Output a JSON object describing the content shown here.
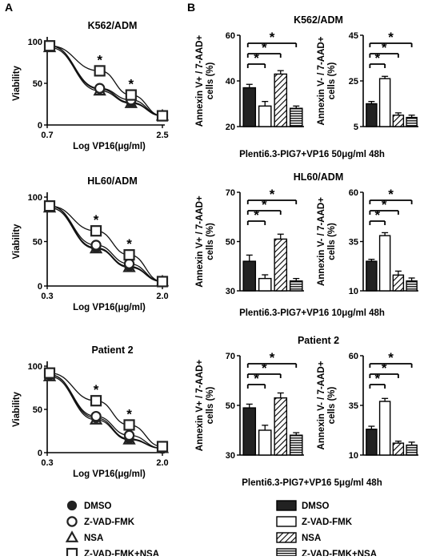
{
  "panel_labels": {
    "a": "A",
    "b": "B"
  },
  "ylabel_viability": "Viability",
  "xlabel_log": "Log VP16(μg/ml)",
  "ylabel_pos": "Annexin V+ / 7-AAD+ cells (%)",
  "ylabel_neg": "Annexin V- / 7-AAD+ cells (%)",
  "star": "*",
  "legend_a": [
    {
      "label": "DMSO",
      "marker": "filled-circle"
    },
    {
      "label": "Z-VAD-FMK",
      "marker": "open-circle"
    },
    {
      "label": "NSA",
      "marker": "open-triangle"
    },
    {
      "label": "Z-VAD-FMK+NSA",
      "marker": "open-square"
    }
  ],
  "legend_b": [
    {
      "label": "DMSO",
      "fill": "solid"
    },
    {
      "label": "Z-VAD-FMK",
      "fill": "white"
    },
    {
      "label": "NSA",
      "fill": "diagonal-hatch"
    },
    {
      "label": "Z-VAD-FMK+NSA",
      "fill": "horizontal-lines"
    }
  ],
  "chart_data": [
    {
      "type": "line",
      "panel": "A",
      "title": "K562/ADM",
      "xlabel": "Log VP16(μg/ml)",
      "ylabel": "Viability",
      "xlim": [
        0.7,
        2.5
      ],
      "ylim": [
        0,
        100
      ],
      "xticks": [
        "0.7",
        "2.5"
      ],
      "yticks": [
        0,
        50,
        100
      ],
      "x": [
        0.7,
        1.5,
        2.0,
        2.5
      ],
      "series": [
        {
          "name": "DMSO",
          "values": [
            95,
            43,
            27,
            11
          ]
        },
        {
          "name": "Z-VAD-FMK",
          "values": [
            95,
            44,
            30,
            11
          ]
        },
        {
          "name": "NSA",
          "values": [
            93,
            41,
            26,
            11
          ]
        },
        {
          "name": "Z-VAD-FMK+NSA",
          "values": [
            95,
            65,
            36,
            11
          ]
        }
      ],
      "significance": [
        1.5,
        2.0
      ]
    },
    {
      "type": "line",
      "panel": "A",
      "title": "HL60/ADM",
      "xlabel": "Log VP16(μg/ml)",
      "ylabel": "Viability",
      "xlim": [
        0.3,
        2.0
      ],
      "ylim": [
        0,
        100
      ],
      "xticks": [
        "0.3",
        "2.0"
      ],
      "yticks": [
        0,
        50,
        100
      ],
      "x": [
        0.3,
        1.0,
        1.5,
        2.0
      ],
      "series": [
        {
          "name": "DMSO",
          "values": [
            90,
            43,
            22,
            5
          ]
        },
        {
          "name": "Z-VAD-FMK",
          "values": [
            90,
            46,
            25,
            5
          ]
        },
        {
          "name": "NSA",
          "values": [
            88,
            42,
            21,
            5
          ]
        },
        {
          "name": "Z-VAD-FMK+NSA",
          "values": [
            90,
            62,
            35,
            5
          ]
        }
      ],
      "significance": [
        1.0,
        1.5
      ]
    },
    {
      "type": "line",
      "panel": "A",
      "title": "Patient 2",
      "xlabel": "Log VP16(μg/ml)",
      "ylabel": "Viability",
      "xlim": [
        0.3,
        2.0
      ],
      "ylim": [
        0,
        100
      ],
      "xticks": [
        "0.3",
        "2.0"
      ],
      "yticks": [
        0,
        50,
        100
      ],
      "x": [
        0.3,
        1.0,
        1.5,
        2.0
      ],
      "series": [
        {
          "name": "DMSO",
          "values": [
            90,
            40,
            16,
            5
          ]
        },
        {
          "name": "Z-VAD-FMK",
          "values": [
            90,
            42,
            20,
            5
          ]
        },
        {
          "name": "NSA",
          "values": [
            88,
            38,
            15,
            5
          ]
        },
        {
          "name": "Z-VAD-FMK+NSA",
          "values": [
            92,
            60,
            32,
            7
          ]
        }
      ],
      "significance": [
        1.0,
        1.5
      ]
    },
    {
      "type": "bar",
      "panel": "B",
      "title": "K562/ADM",
      "ylabel": "Annexin V+ / 7-AAD+ cells (%)",
      "ylim": [
        20,
        60
      ],
      "yticks": [
        20,
        40,
        60
      ],
      "categories": [
        "DMSO",
        "Z-VAD-FMK",
        "NSA",
        "Z-VAD-FMK+NSA"
      ],
      "values": [
        37,
        29,
        43,
        28
      ],
      "errors": [
        1.5,
        2,
        1.5,
        1
      ],
      "comparisons": [
        [
          0,
          1
        ],
        [
          0,
          2
        ],
        [
          0,
          3
        ]
      ]
    },
    {
      "type": "bar",
      "panel": "B",
      "title": "",
      "ylabel": "Annexin V- / 7-AAD+ cells (%)",
      "ylim": [
        5,
        45
      ],
      "yticks": [
        5,
        25,
        45
      ],
      "categories": [
        "DMSO",
        "Z-VAD-FMK",
        "NSA",
        "Z-VAD-FMK+NSA"
      ],
      "values": [
        15,
        26,
        10,
        9
      ],
      "errors": [
        1,
        1,
        1,
        1
      ],
      "comparisons": [
        [
          0,
          1
        ],
        [
          0,
          2
        ],
        [
          0,
          3
        ]
      ]
    },
    {
      "type": "bar",
      "panel": "B",
      "title": "HL60/ADM",
      "ylabel": "Annexin V+ / 7-AAD+ cells (%)",
      "ylim": [
        30,
        70
      ],
      "yticks": [
        30,
        50,
        70
      ],
      "categories": [
        "DMSO",
        "Z-VAD-FMK",
        "NSA",
        "Z-VAD-FMK+NSA"
      ],
      "values": [
        42,
        35,
        51,
        34
      ],
      "errors": [
        2.5,
        1.5,
        2,
        1
      ],
      "comparisons": [
        [
          0,
          1
        ],
        [
          0,
          2
        ],
        [
          0,
          3
        ]
      ]
    },
    {
      "type": "bar",
      "panel": "B",
      "title": "",
      "ylabel": "Annexin V- / 7-AAD+ cells (%)",
      "ylim": [
        10,
        60
      ],
      "yticks": [
        10,
        35,
        60
      ],
      "categories": [
        "DMSO",
        "Z-VAD-FMK",
        "NSA",
        "Z-VAD-FMK+NSA"
      ],
      "values": [
        25,
        38,
        18,
        15
      ],
      "errors": [
        1,
        1.5,
        2,
        1.5
      ],
      "comparisons": [
        [
          0,
          1
        ],
        [
          0,
          2
        ],
        [
          0,
          3
        ]
      ]
    },
    {
      "type": "bar",
      "panel": "B",
      "title": "Patient 2",
      "ylabel": "Annexin V+ / 7-AAD+ cells (%)",
      "ylim": [
        30,
        70
      ],
      "yticks": [
        30,
        50,
        70
      ],
      "categories": [
        "DMSO",
        "Z-VAD-FMK",
        "NSA",
        "Z-VAD-FMK+NSA"
      ],
      "values": [
        49,
        40,
        53,
        38
      ],
      "errors": [
        1.5,
        2,
        2,
        1
      ],
      "comparisons": [
        [
          0,
          1
        ],
        [
          0,
          2
        ],
        [
          0,
          3
        ]
      ]
    },
    {
      "type": "bar",
      "panel": "B",
      "title": "",
      "ylabel": "Annexin V- / 7-AAD+ cells (%)",
      "ylim": [
        10,
        60
      ],
      "yticks": [
        10,
        35,
        60
      ],
      "categories": [
        "DMSO",
        "Z-VAD-FMK",
        "NSA",
        "Z-VAD-FMK+NSA"
      ],
      "values": [
        23,
        37,
        16,
        15
      ],
      "errors": [
        1.5,
        1.5,
        1,
        1.5
      ],
      "comparisons": [
        [
          0,
          1
        ],
        [
          0,
          2
        ],
        [
          0,
          3
        ]
      ]
    }
  ],
  "row_captions": [
    "Plenti6.3-PIG7+VP16 50μg/ml 48h",
    "Plenti6.3-PIG7+VP16 10μg/ml 48h",
    "Plenti6.3-PIG7+VP16 5μg/ml 48h"
  ]
}
